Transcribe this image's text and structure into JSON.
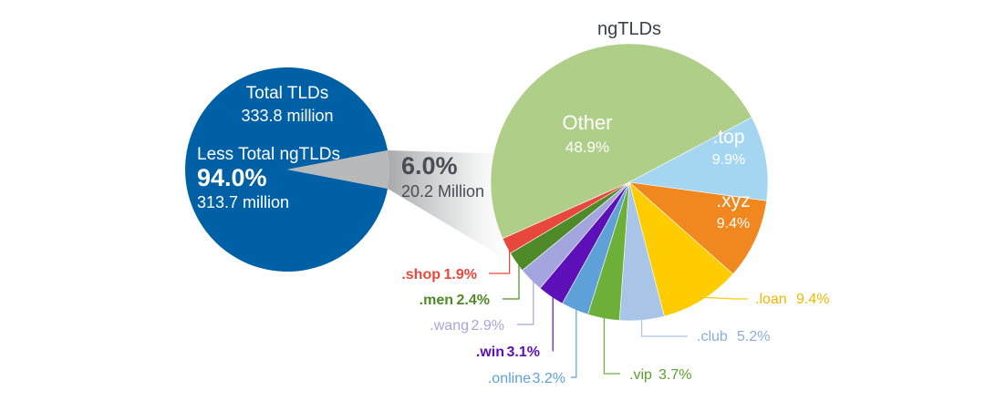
{
  "chart_data": [
    {
      "type": "pie",
      "name": "total",
      "slices": [
        {
          "label": "Less Total ngTLDs",
          "percent": "94.0%",
          "value": 94.0,
          "detail": "313.7 million",
          "color": "#0060a6"
        },
        {
          "label": "",
          "percent": "6.0%",
          "value": 6.0,
          "detail": "20.2 Million",
          "color": "#b8b9bb"
        }
      ],
      "header_title": "Total TLDs",
      "header_value": "333.8 million"
    },
    {
      "type": "pie",
      "name": "ngtlds",
      "title": "ngTLDs",
      "slices": [
        {
          "label": "Other",
          "percent": "48.9%",
          "value": 48.9,
          "color": "#afcf89"
        },
        {
          "label": ".top",
          "percent": "9.9%",
          "value": 9.9,
          "color": "#a4d6f2"
        },
        {
          "label": ".xyz",
          "percent": "9.4%",
          "value": 9.4,
          "color": "#f0871f"
        },
        {
          "label": ".loan",
          "percent": "9.4%",
          "value": 9.4,
          "color": "#ffcc00"
        },
        {
          "label": ".club",
          "percent": "5.2%",
          "value": 5.2,
          "color": "#a8c4e6"
        },
        {
          "label": ".vip",
          "percent": "3.7%",
          "value": 3.7,
          "color": "#6cb03a"
        },
        {
          "label": ".online",
          "percent": "3.2%",
          "value": 3.2,
          "color": "#5ea0d8"
        },
        {
          "label": ".win",
          "percent": "3.1%",
          "value": 3.1,
          "color": "#5e10b8"
        },
        {
          "label": ".wang",
          "percent": "2.9%",
          "value": 2.9,
          "color": "#a3a6de"
        },
        {
          "label": ".men",
          "percent": "2.4%",
          "value": 2.4,
          "color": "#4f8a28"
        },
        {
          "label": ".shop",
          "percent": "1.9%",
          "value": 1.9,
          "color": "#e8483c"
        }
      ]
    }
  ]
}
